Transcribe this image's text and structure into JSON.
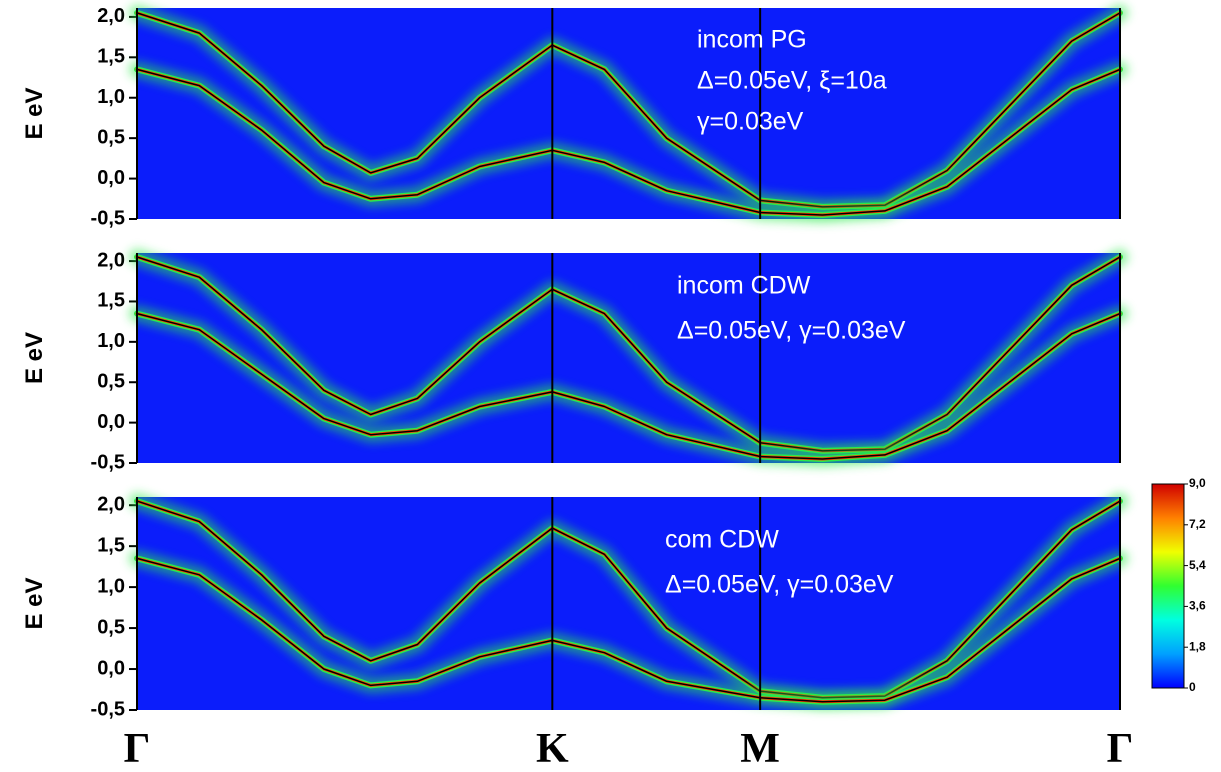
{
  "chart_data": [
    {
      "type": "line",
      "background": "#0b1dfb",
      "glow_color": "#2bea4a",
      "annotations": [
        "incom PG",
        "Δ=0.05eV, ξ=10a",
        "γ=0.03eV"
      ],
      "ylabel": "E eV",
      "ylim": [
        -0.5,
        2.11
      ],
      "yticks": [
        {
          "value": -0.5,
          "label": "-0,5"
        },
        {
          "value": 0,
          "label": "0,0"
        },
        {
          "value": 0.5,
          "label": "0,5"
        },
        {
          "value": 1,
          "label": "1,0"
        },
        {
          "value": 1.5,
          "label": "1,5"
        },
        {
          "value": 2,
          "label": "2,0"
        }
      ],
      "x": [
        0,
        0.2,
        0.4,
        0.6,
        0.75,
        0.9,
        1.1,
        1.333,
        1.5,
        1.7,
        2.0,
        2.2,
        2.4,
        2.6,
        2.8,
        3.0,
        3.155
      ],
      "series": [
        {
          "color": "#000000",
          "values": [
            2.05,
            1.8,
            1.15,
            0.4,
            0.07,
            0.25,
            1.0,
            1.65,
            1.35,
            0.5,
            -0.27,
            -0.35,
            -0.33,
            0.1,
            0.9,
            1.7,
            2.05
          ]
        },
        {
          "color": "#000000",
          "values": [
            1.35,
            1.15,
            0.6,
            -0.05,
            -0.25,
            -0.2,
            0.15,
            0.35,
            0.2,
            -0.15,
            -0.42,
            -0.45,
            -0.4,
            -0.1,
            0.5,
            1.1,
            1.35
          ]
        }
      ]
    },
    {
      "type": "line",
      "background": "#0b1dfb",
      "glow_color": "#2bea4a",
      "annotations": [
        "incom CDW",
        "Δ=0.05eV, γ=0.03eV"
      ],
      "ylabel": "E eV",
      "ylim": [
        -0.5,
        2.1
      ],
      "yticks": [
        {
          "value": -0.5,
          "label": "-0,5"
        },
        {
          "value": 0,
          "label": "0,0"
        },
        {
          "value": 0.5,
          "label": "0,5"
        },
        {
          "value": 1,
          "label": "1,0"
        },
        {
          "value": 1.5,
          "label": "1,5"
        },
        {
          "value": 2,
          "label": "2,0"
        }
      ],
      "x": [
        0,
        0.2,
        0.4,
        0.6,
        0.75,
        0.9,
        1.1,
        1.333,
        1.5,
        1.7,
        2.0,
        2.2,
        2.4,
        2.6,
        2.8,
        3.0,
        3.155
      ],
      "series": [
        {
          "color": "#000000",
          "values": [
            2.05,
            1.8,
            1.15,
            0.4,
            0.1,
            0.3,
            1.0,
            1.65,
            1.35,
            0.5,
            -0.25,
            -0.35,
            -0.33,
            0.1,
            0.9,
            1.7,
            2.05
          ]
        },
        {
          "color": "#000000",
          "values": [
            1.35,
            1.15,
            0.6,
            0.05,
            -0.15,
            -0.1,
            0.2,
            0.38,
            0.2,
            -0.15,
            -0.42,
            -0.45,
            -0.4,
            -0.1,
            0.5,
            1.1,
            1.35
          ]
        }
      ]
    },
    {
      "type": "line",
      "background": "#0b1dfb",
      "glow_color": "#2bea4a",
      "annotations": [
        "com CDW",
        "Δ=0.05eV, γ=0.03eV"
      ],
      "ylabel": "E eV",
      "ylim": [
        -0.5,
        2.1
      ],
      "yticks": [
        {
          "value": -0.5,
          "label": "-0,5"
        },
        {
          "value": 0,
          "label": "0,0"
        },
        {
          "value": 0.5,
          "label": "0,5"
        },
        {
          "value": 1,
          "label": "1,0"
        },
        {
          "value": 1.5,
          "label": "1,5"
        },
        {
          "value": 2,
          "label": "2,0"
        }
      ],
      "x": [
        0,
        0.2,
        0.4,
        0.6,
        0.75,
        0.9,
        1.1,
        1.333,
        1.5,
        1.7,
        2.0,
        2.2,
        2.4,
        2.6,
        2.8,
        3.0,
        3.155
      ],
      "xlim": [
        0,
        3.155
      ],
      "xticks": [
        {
          "value": 0,
          "label": "Γ"
        },
        {
          "value": 1.333,
          "label": "K"
        },
        {
          "value": 2.0,
          "label": "M"
        },
        {
          "value": 3.155,
          "label": "Γ"
        }
      ],
      "series": [
        {
          "color": "#000000",
          "values": [
            2.05,
            1.8,
            1.15,
            0.4,
            0.1,
            0.3,
            1.05,
            1.72,
            1.4,
            0.5,
            -0.27,
            -0.35,
            -0.33,
            0.1,
            0.9,
            1.7,
            2.05
          ]
        },
        {
          "color": "#000000",
          "values": [
            1.35,
            1.15,
            0.6,
            0.0,
            -0.2,
            -0.15,
            0.15,
            0.35,
            0.2,
            -0.15,
            -0.35,
            -0.4,
            -0.38,
            -0.1,
            0.5,
            1.1,
            1.35
          ]
        }
      ],
      "colorbar": {
        "ylim": [
          0,
          9
        ],
        "ticks": [
          {
            "value": 0,
            "label": "0"
          },
          {
            "value": 1.8,
            "label": "1,8"
          },
          {
            "value": 3.6,
            "label": "3,6"
          },
          {
            "value": 5.4,
            "label": "5,4"
          },
          {
            "value": 7.2,
            "label": "7,2"
          },
          {
            "value": 9,
            "label": "9,0"
          }
        ],
        "colors": [
          "#0000ff",
          "#00a0ff",
          "#00ffe0",
          "#30ff30",
          "#f0ff00",
          "#ff8000",
          "#d00000"
        ]
      }
    }
  ]
}
